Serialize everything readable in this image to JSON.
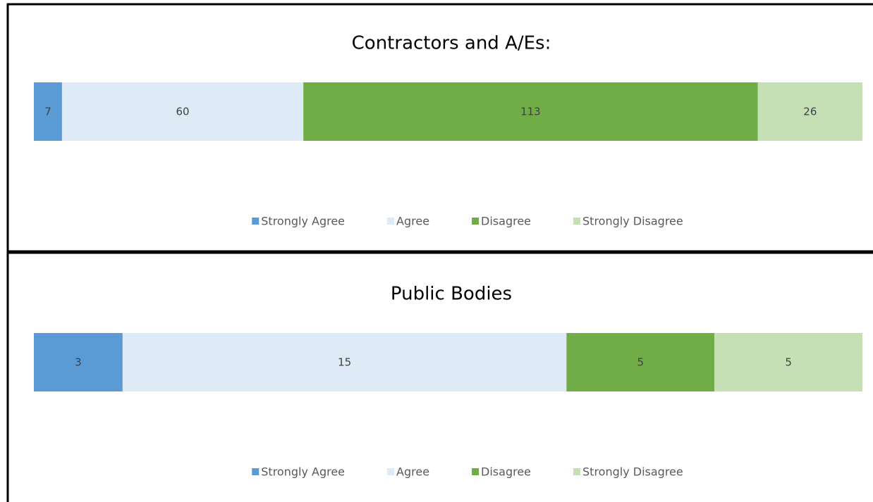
{
  "chart_data": [
    {
      "type": "bar",
      "stacked": "percent",
      "orientation": "horizontal",
      "title": "Contractors and A/Es:",
      "legend": "bottom",
      "series": [
        {
          "name": "Strongly Agree",
          "color": "#5b9bd5",
          "values": [
            7
          ]
        },
        {
          "name": "Agree",
          "color": "#deebf7",
          "values": [
            60
          ]
        },
        {
          "name": "Disagree",
          "color": "#70ad47",
          "values": [
            113
          ]
        },
        {
          "name": "Strongly Disagree",
          "color": "#c5e0b4",
          "values": [
            26
          ]
        }
      ]
    },
    {
      "type": "bar",
      "stacked": "percent",
      "orientation": "horizontal",
      "title": "Public Bodies",
      "legend": "bottom",
      "series": [
        {
          "name": "Strongly Agree",
          "color": "#5b9bd5",
          "values": [
            3
          ]
        },
        {
          "name": "Agree",
          "color": "#deebf7",
          "values": [
            15
          ]
        },
        {
          "name": "Disagree",
          "color": "#70ad47",
          "values": [
            5
          ]
        },
        {
          "name": "Strongly Disagree",
          "color": "#c5e0b4",
          "values": [
            5
          ]
        }
      ]
    }
  ]
}
